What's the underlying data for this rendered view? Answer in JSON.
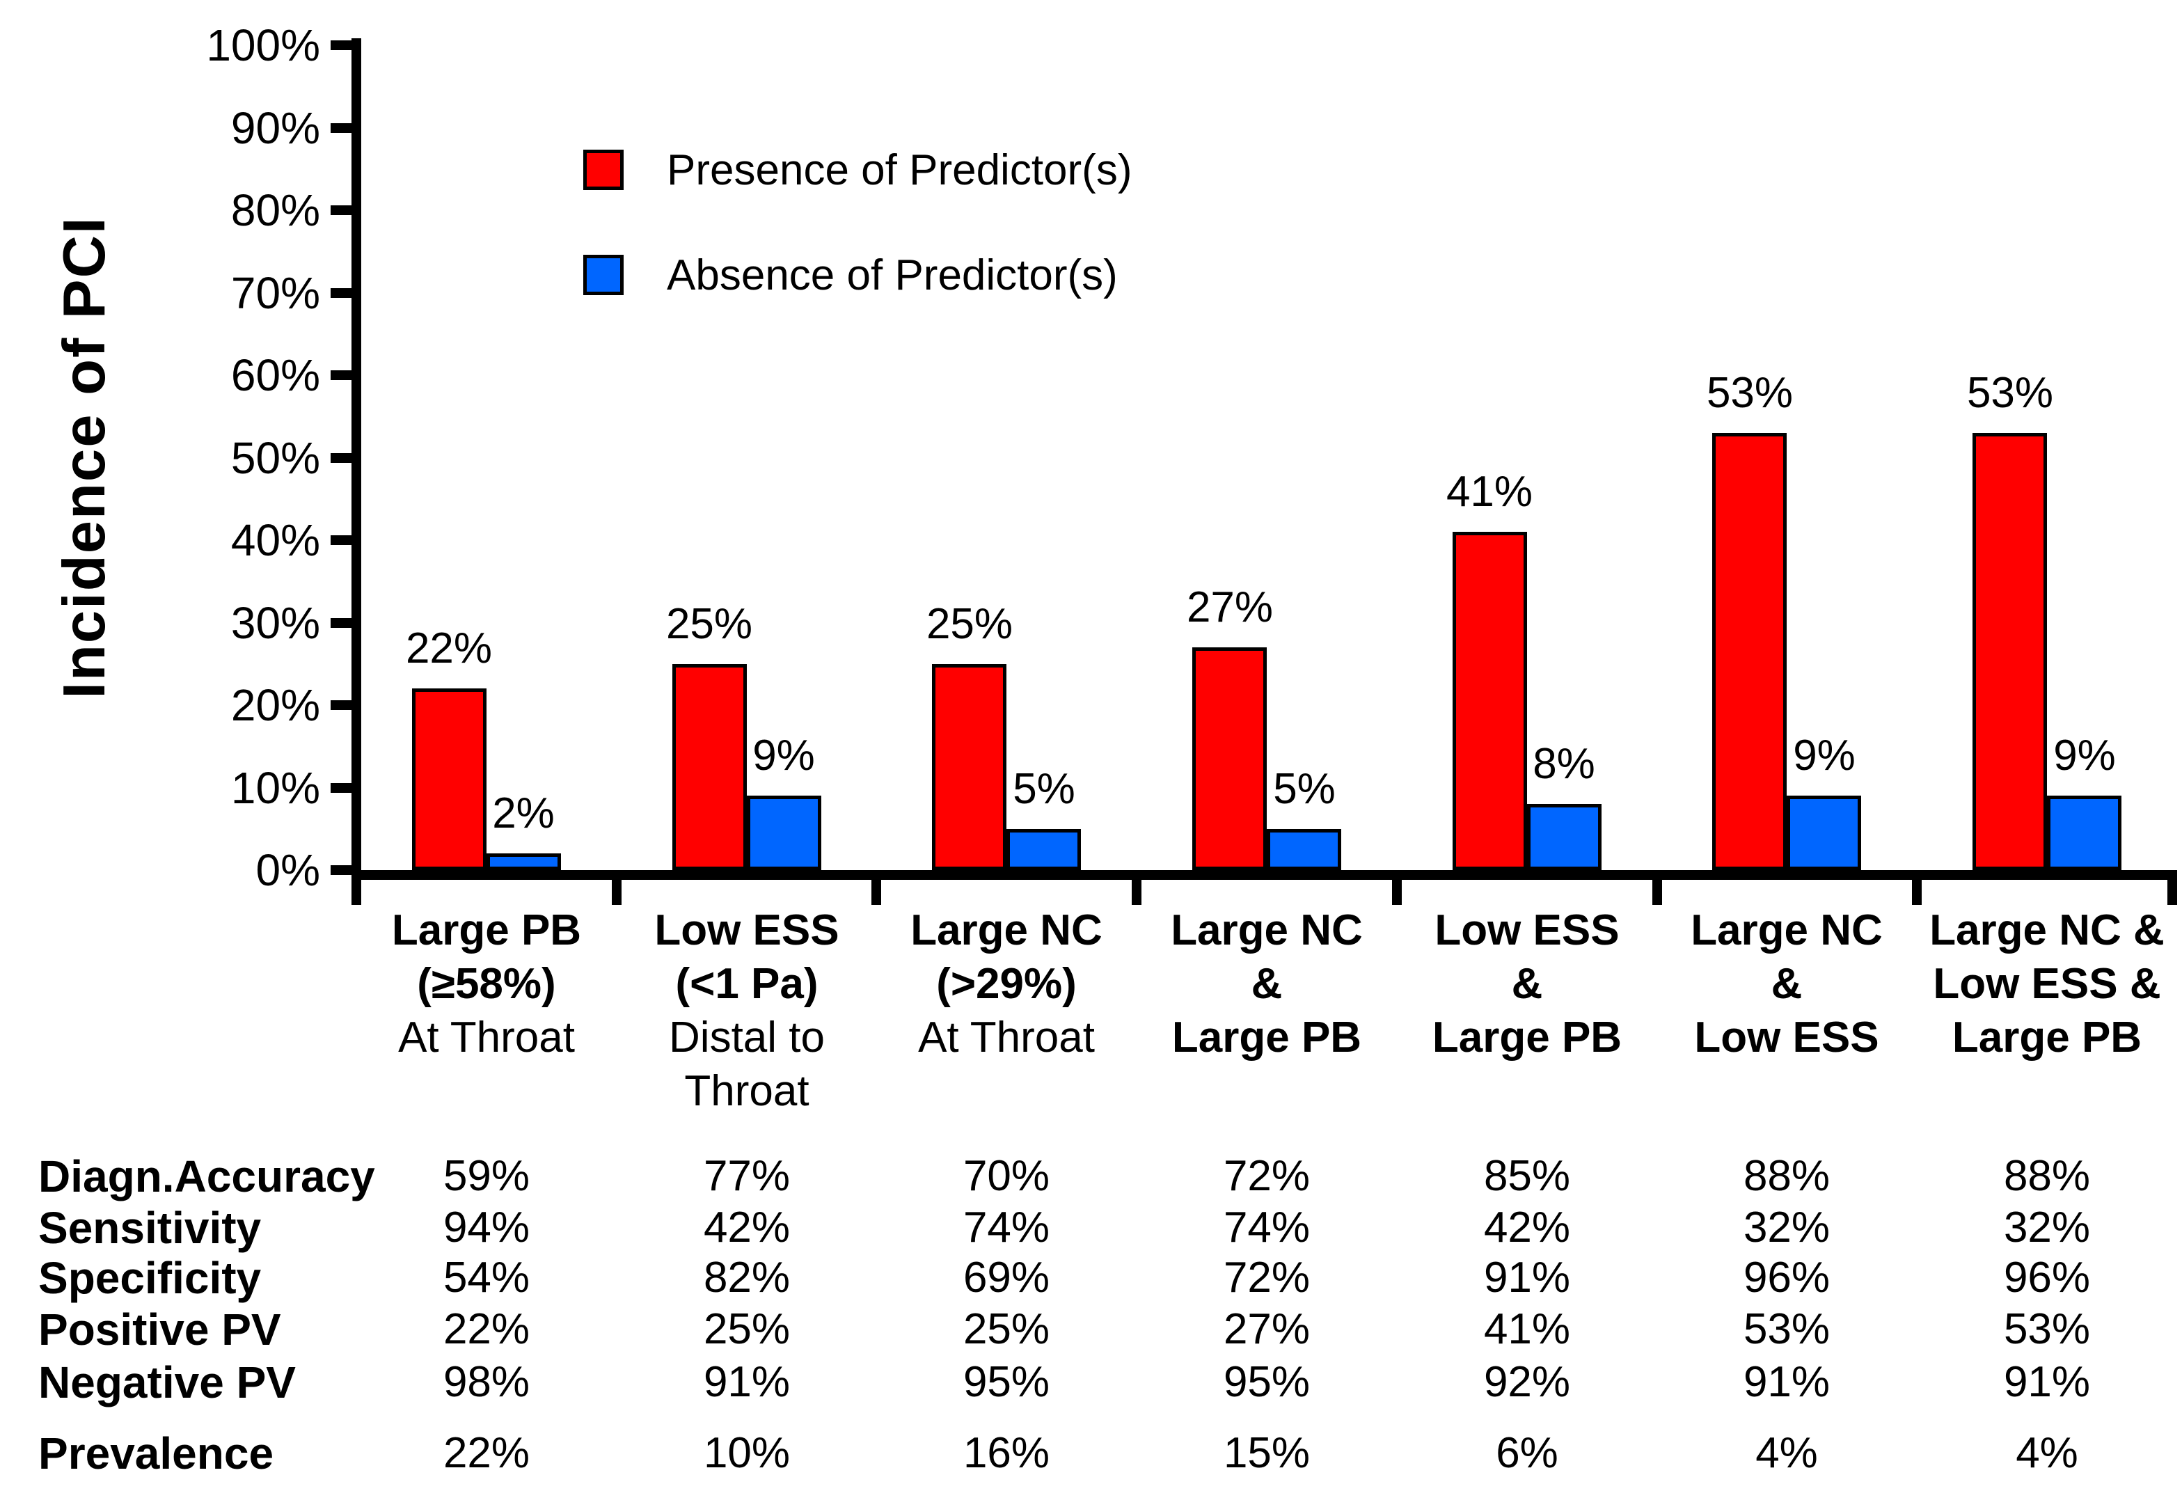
{
  "chart_data": {
    "type": "bar",
    "title": "",
    "xlabel": "",
    "ylabel": "Incidence of PCI",
    "ylim": [
      0,
      100
    ],
    "ytick_step": 10,
    "yticks": [
      "0%",
      "10%",
      "20%",
      "30%",
      "40%",
      "50%",
      "60%",
      "70%",
      "80%",
      "90%",
      "100%"
    ],
    "grid": false,
    "legend_position": "upper left inside plot",
    "bar_label_format": "{value}%",
    "categories": [
      {
        "name": "Large PB (≥58%) At Throat",
        "lines": [
          {
            "text": "Large PB",
            "bold": true
          },
          {
            "text": "(≥58%)",
            "bold": true
          },
          {
            "text": "At Throat",
            "bold": false
          }
        ]
      },
      {
        "name": "Low ESS (<1 Pa) Distal to Throat",
        "lines": [
          {
            "text": "Low ESS",
            "bold": true
          },
          {
            "text": "(<1 Pa)",
            "bold": true
          },
          {
            "text": "Distal to",
            "bold": false
          },
          {
            "text": "Throat",
            "bold": false
          }
        ]
      },
      {
        "name": "Large NC (>29%) At Throat",
        "lines": [
          {
            "text": "Large NC",
            "bold": true
          },
          {
            "text": "(>29%)",
            "bold": true
          },
          {
            "text": "At Throat",
            "bold": false
          }
        ]
      },
      {
        "name": "Large NC & Large PB",
        "lines": [
          {
            "text": "Large NC",
            "bold": true
          },
          {
            "text": "&",
            "bold": true
          },
          {
            "text": "Large PB",
            "bold": true
          }
        ]
      },
      {
        "name": "Low ESS & Large PB",
        "lines": [
          {
            "text": "Low ESS",
            "bold": true
          },
          {
            "text": "&",
            "bold": true
          },
          {
            "text": "Large PB",
            "bold": true
          }
        ]
      },
      {
        "name": "Large NC & Low ESS",
        "lines": [
          {
            "text": "Large NC",
            "bold": true
          },
          {
            "text": "&",
            "bold": true
          },
          {
            "text": "Low ESS",
            "bold": true
          }
        ]
      },
      {
        "name": "Large NC & Low ESS & Large PB",
        "lines": [
          {
            "text": "Large NC &",
            "bold": true
          },
          {
            "text": "Low ESS &",
            "bold": true
          },
          {
            "text": "Large PB",
            "bold": true
          }
        ]
      }
    ],
    "series": [
      {
        "name": "Presence of Predictor(s)",
        "color": "#ff0000",
        "values": [
          22,
          25,
          25,
          27,
          41,
          53,
          53
        ]
      },
      {
        "name": "Absence of Predictor(s)",
        "color": "#0066ff",
        "values": [
          2,
          9,
          5,
          5,
          8,
          9,
          9
        ]
      }
    ]
  },
  "stats_table": {
    "rows": [
      {
        "label": "Diagn.Accuracy",
        "values": [
          "59%",
          "77%",
          "70%",
          "72%",
          "85%",
          "88%",
          "88%"
        ]
      },
      {
        "label": "Sensitivity",
        "values": [
          "94%",
          "42%",
          "74%",
          "74%",
          "42%",
          "32%",
          "32%"
        ]
      },
      {
        "label": "Specificity",
        "values": [
          "54%",
          "82%",
          "69%",
          "72%",
          "91%",
          "96%",
          "96%"
        ]
      },
      {
        "label": "Positive PV",
        "values": [
          "22%",
          "25%",
          "25%",
          "27%",
          "41%",
          "53%",
          "53%"
        ]
      },
      {
        "label": "Negative PV",
        "values": [
          "98%",
          "91%",
          "95%",
          "95%",
          "92%",
          "91%",
          "91%"
        ]
      },
      {
        "label": "Prevalence",
        "values": [
          "22%",
          "10%",
          "16%",
          "15%",
          "6%",
          "4%",
          "4%"
        ]
      }
    ]
  }
}
